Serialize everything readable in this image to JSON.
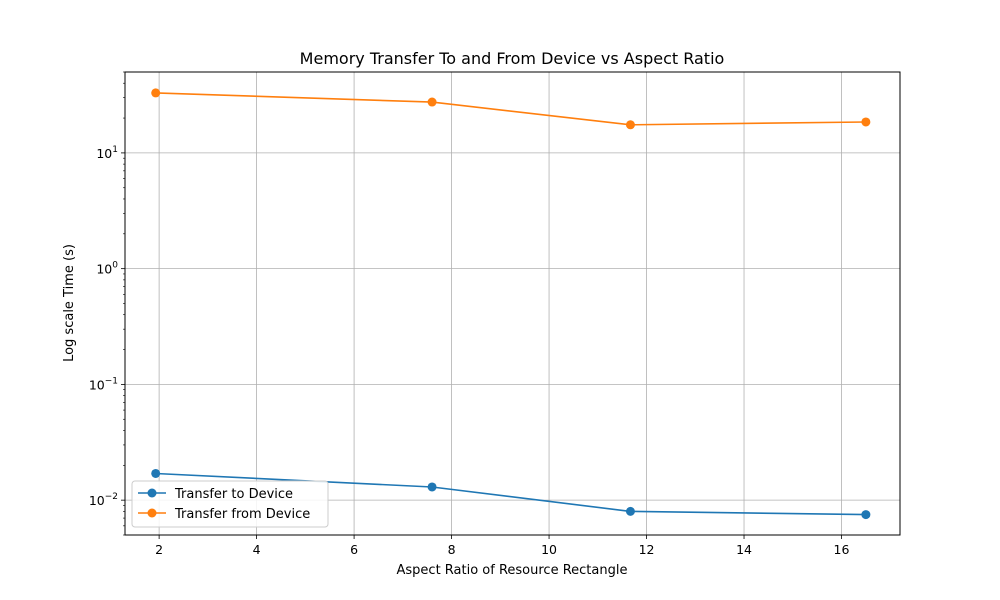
{
  "chart_data": {
    "type": "line",
    "title": "Memory Transfer To and From Device vs Aspect Ratio",
    "xlabel": "Aspect Ratio of Resource Rectangle",
    "ylabel": "Log scale Time (s)",
    "yscale": "log",
    "xlim": [
      1.3,
      17.2
    ],
    "ylim": [
      0.005,
      50
    ],
    "xticks": [
      2,
      4,
      6,
      8,
      10,
      12,
      14,
      16
    ],
    "xtick_labels": [
      "2",
      "4",
      "6",
      "8",
      "10",
      "12",
      "14",
      "16"
    ],
    "yticks": [
      0.01,
      0.1,
      1,
      10
    ],
    "ytick_labels": [
      {
        "base": "10",
        "exp": "−2"
      },
      {
        "base": "10",
        "exp": "−1"
      },
      {
        "base": "10",
        "exp": "0"
      },
      {
        "base": "10",
        "exp": "1"
      }
    ],
    "grid": true,
    "legend_position": "lower-left",
    "series": [
      {
        "name": "Transfer to Device",
        "color": "#1f77b4",
        "x": [
          1.93,
          7.6,
          11.67,
          16.5
        ],
        "y": [
          0.017,
          0.013,
          0.008,
          0.0075
        ]
      },
      {
        "name": "Transfer from Device",
        "color": "#ff7f0e",
        "x": [
          1.93,
          7.6,
          11.67,
          16.5
        ],
        "y": [
          33,
          27.5,
          17.5,
          18.5
        ]
      }
    ]
  }
}
